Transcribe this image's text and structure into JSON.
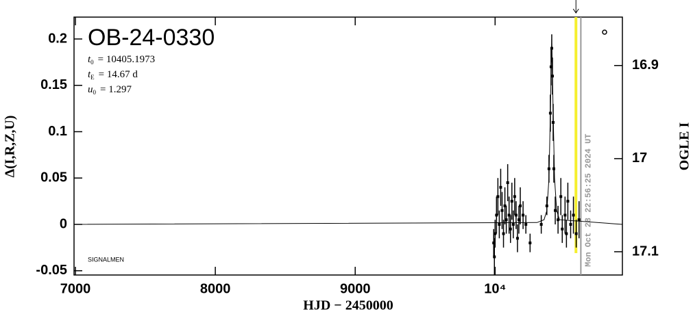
{
  "chart_data": {
    "type": "lightcurve",
    "title": "OB-24-0330",
    "params": [
      {
        "symbol": "t",
        "sub": "0",
        "text": "= 10405.1973"
      },
      {
        "symbol": "t",
        "sub": "E",
        "text": "= 14.67 d"
      },
      {
        "symbol": "u",
        "sub": "0",
        "text": "= 1.297"
      }
    ],
    "source_note": "SIGNALMEN",
    "timestamp": "Mon Oct 28 22:56:25 2024 UT",
    "x_label": "HJD − 2450000",
    "y_label": "Δ(I,R,Z,U)",
    "y2_label": "OGLE I",
    "xlim": [
      6990,
      10910
    ],
    "xticks": [
      7000,
      8000,
      9000,
      {
        "value": 10000,
        "label": "10⁴"
      }
    ],
    "ylim": [
      -0.0546,
      0.2236
    ],
    "yticks": [
      -0.05,
      0,
      0.05,
      0.1,
      0.15,
      0.2
    ],
    "y2lim": [
      17.125,
      16.848
    ],
    "y2ticks": [
      16.9,
      17,
      17.1
    ],
    "current_time": 10578,
    "current_color": "#f5ef2f",
    "end_line": 10613,
    "end_color": "#999999",
    "data": {
      "color": "#000000",
      "x": [
        9990,
        9995,
        10000,
        10010,
        10020,
        10030,
        10040,
        10050,
        10060,
        10070,
        10080,
        10090,
        10100,
        10110,
        10120,
        10130,
        10140,
        10150,
        10160,
        10170,
        10180,
        10200,
        10220,
        10250,
        10330,
        10370,
        10385,
        10395,
        10400,
        10405,
        10410,
        10415,
        10420,
        10430,
        10450,
        10470,
        10480,
        10500,
        10510,
        10520,
        10540,
        10560,
        10580,
        10600
      ],
      "values": [
        -0.02,
        -0.035,
        -0.01,
        0.01,
        0.03,
        0.0,
        0.04,
        0.015,
        -0.01,
        0.02,
        0.005,
        0.045,
        0.01,
        -0.005,
        0.025,
        0.0,
        0.03,
        0.01,
        -0.015,
        0.005,
        0.02,
        0.01,
        0.0,
        -0.02,
        0.0,
        0.02,
        0.06,
        0.12,
        0.17,
        0.19,
        0.16,
        0.11,
        0.06,
        0.015,
        0.005,
        0.03,
        -0.005,
        0.01,
        -0.01,
        0.025,
        0.0,
        0.01,
        -0.01,
        0.005
      ],
      "errors": [
        0.015,
        0.02,
        0.015,
        0.02,
        0.02,
        0.015,
        0.02,
        0.02,
        0.015,
        0.02,
        0.015,
        0.02,
        0.02,
        0.015,
        0.02,
        0.015,
        0.02,
        0.015,
        0.015,
        0.015,
        0.02,
        0.015,
        0.01,
        0.01,
        0.01,
        0.01,
        0.015,
        0.02,
        0.02,
        0.015,
        0.02,
        0.02,
        0.015,
        0.015,
        0.015,
        0.02,
        0.015,
        0.02,
        0.015,
        0.02,
        0.015,
        0.02,
        0.015,
        0.02
      ]
    },
    "model": {
      "color": "#000000",
      "x": [
        6990,
        10300,
        10350,
        10370,
        10385,
        10395,
        10405,
        10415,
        10425,
        10440,
        10460,
        10910
      ],
      "values": [
        0,
        0.002,
        0.005,
        0.015,
        0.05,
        0.12,
        0.2,
        0.12,
        0.05,
        0.015,
        0.005,
        0
      ]
    }
  }
}
